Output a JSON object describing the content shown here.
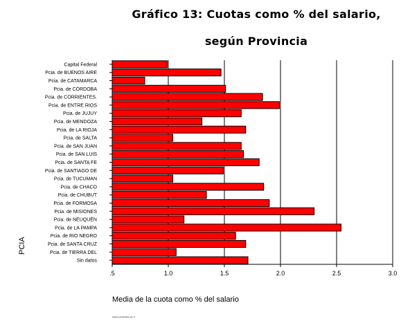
{
  "chart_data": {
    "type": "bar",
    "orientation": "horizontal",
    "title": "Gráfico 13: Cuotas como % del salario,",
    "subtitle": "según Provincia",
    "xlabel": "Media de la cuota como % del salario",
    "ylabel": "PCIA",
    "xlim": [
      0.5,
      3.0
    ],
    "xticks": [
      0.5,
      1.0,
      1.5,
      2.0,
      2.5,
      3.0
    ],
    "xtick_labels": [
      ".5",
      "1.0",
      "1.5",
      "2.0",
      "2.5",
      "3.0"
    ],
    "grid": "vertical",
    "bar_color": "#ff0000",
    "categories": [
      "Capital Federal",
      "Pcia. de BUENOS AIRE",
      "Pcia. de CATAMARCA",
      "Pcia. de CÓRDOBA",
      "Pcia. de CORRIENTES.",
      "Pcia. de ENTRE RIOS",
      "Pcia. de JUJUY",
      "Pcia. de MENDOZA",
      "Pcia. de LA RIOJA",
      "Pcia. de SALTA",
      "Pcia. de SAN JUAN",
      "Pcia. de SAN LUIS",
      "Pcia. de SANTA FE",
      "Pcia. de SANTIAGO DE",
      "Pcia. de TUCUMAN",
      "Pcia. de CHACO",
      "Pcia. de CHUBUT",
      "Pcia. de FORMOSA",
      "Pcia. de MISIONES",
      "Pcia. de NEUQUÉN",
      "Pcia. de LA PAMPA",
      "Pcia. de RIO NEGRO",
      "Pcia. de SANTA CRUZ",
      "Pcia. de TIERRA DEL",
      "Sin datos"
    ],
    "values": [
      0.99,
      1.47,
      0.79,
      1.51,
      1.84,
      1.99,
      1.65,
      1.3,
      1.69,
      1.04,
      1.65,
      1.67,
      1.81,
      1.49,
      1.04,
      1.85,
      1.34,
      1.9,
      2.3,
      1.14,
      2.54,
      1.6,
      1.69,
      1.07,
      1.71
    ]
  },
  "footnote": "Casos ponderados por V"
}
